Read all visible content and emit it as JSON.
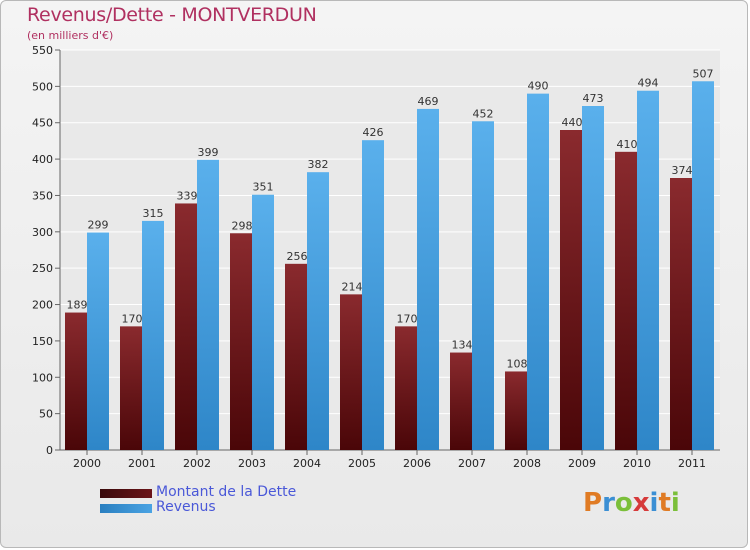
{
  "header": {
    "title": "Revenus/Dette - MONTVERDUN",
    "subtitle": "(en milliers d'€)"
  },
  "legend": {
    "items": [
      {
        "label": "Montant de la Dette",
        "color": "#6b1418"
      },
      {
        "label": "Revenus",
        "color": "#4aa3e3"
      }
    ]
  },
  "logo": {
    "letters": [
      "P",
      "r",
      "o",
      "x",
      "i",
      "t",
      "i"
    ],
    "colors": [
      "#e07b24",
      "#3b8fd4",
      "#7bbf3a",
      "#d63a3a",
      "#3b8fd4",
      "#e07b24",
      "#7bbf3a"
    ]
  },
  "colors": {
    "dette": "#6b1418",
    "revenus": "#4aa3e3",
    "grid": "#ffffff",
    "plot_bg": "#e9e9e9"
  },
  "chart_data": {
    "type": "bar",
    "title": "Revenus/Dette - MONTVERDUN",
    "subtitle": "(en milliers d'€)",
    "categories": [
      "2000",
      "2001",
      "2002",
      "2003",
      "2004",
      "2005",
      "2006",
      "2007",
      "2008",
      "2009",
      "2010",
      "2011"
    ],
    "series": [
      {
        "name": "Montant de la Dette",
        "values": [
          189,
          170,
          339,
          298,
          256,
          214,
          170,
          134,
          108,
          440,
          410,
          374
        ]
      },
      {
        "name": "Revenus",
        "values": [
          299,
          315,
          399,
          351,
          382,
          426,
          469,
          452,
          490,
          473,
          494,
          507
        ]
      }
    ],
    "ylim": [
      0,
      550
    ],
    "yticks": [
      0,
      50,
      100,
      150,
      200,
      250,
      300,
      350,
      400,
      450,
      500,
      550
    ],
    "grid": true,
    "legend_position": "bottom-left"
  }
}
